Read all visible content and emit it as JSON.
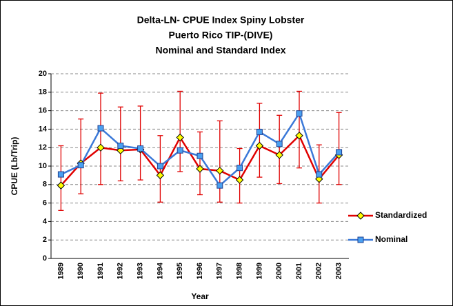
{
  "chart_data": {
    "type": "line",
    "title": [
      "Delta-LN- CPUE Index Spiny Lobster",
      "Puerto Rico TIP-(DIVE)",
      "Nominal and Standard Index"
    ],
    "x_label": "Year",
    "y_label": "CPUE (Lb/Trip)",
    "categories": [
      "1989",
      "1990",
      "1991",
      "1992",
      "1993",
      "1994",
      "1995",
      "1996",
      "1997",
      "1998",
      "1999",
      "2000",
      "2001",
      "2002",
      "2003"
    ],
    "series": [
      {
        "name": "Standardized",
        "color": "#e00000",
        "marker_color": "#ffff00",
        "values": [
          7.9,
          10.3,
          12.0,
          11.7,
          11.8,
          9.0,
          13.1,
          9.7,
          9.5,
          8.5,
          12.2,
          11.2,
          13.3,
          8.6,
          11.2
        ],
        "lower": [
          5.2,
          7.0,
          8.0,
          8.4,
          8.5,
          6.1,
          9.4,
          6.9,
          6.1,
          6.0,
          8.8,
          8.1,
          9.8,
          6.0,
          8.0
        ],
        "upper": [
          12.2,
          15.1,
          17.9,
          16.4,
          16.5,
          13.3,
          18.1,
          13.7,
          14.9,
          11.9,
          16.8,
          15.5,
          18.1,
          12.3,
          15.8
        ]
      },
      {
        "name": "Nominal",
        "color": "#3a78d8",
        "marker_color": "#4aa0f0",
        "values": [
          9.1,
          10.1,
          14.1,
          12.2,
          11.9,
          10.0,
          11.7,
          11.1,
          7.9,
          9.8,
          13.7,
          12.4,
          15.7,
          9.1,
          11.5
        ]
      }
    ],
    "ylim": [
      0,
      20
    ],
    "yticks": [
      0,
      2,
      4,
      6,
      8,
      10,
      12,
      14,
      16,
      18,
      20
    ],
    "grid": true,
    "legend": "right"
  }
}
